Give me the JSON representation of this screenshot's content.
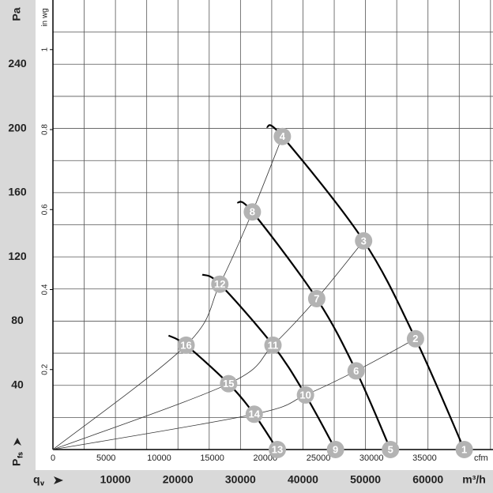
{
  "chart_data": {
    "type": "line",
    "y_label": "Pa",
    "y2_label": "in wg",
    "x2_label": "cfm",
    "x_label": "m³/h",
    "y_symbol": {
      "main": "P",
      "sub": "fs"
    },
    "x_symbol": {
      "main": "q",
      "sub": "v"
    },
    "xlim": [
      0,
      70400
    ],
    "xticks": [
      10000,
      20000,
      30000,
      40000,
      50000,
      60000
    ],
    "x2lim": [
      0,
      41440
    ],
    "x2ticks": [
      0,
      5000,
      10000,
      15000,
      20000,
      25000,
      30000,
      35000
    ],
    "ylim": [
      0,
      280
    ],
    "yticks": [
      40,
      80,
      120,
      160,
      200,
      240
    ],
    "y2lim": [
      0,
      1.124
    ],
    "y2ticks": [
      0.2,
      0.4,
      0.6,
      0.8,
      1
    ],
    "xgrid": [
      5000,
      10000,
      15000,
      20000,
      25000,
      30000,
      35000,
      40000,
      45000,
      50000,
      55000,
      60000,
      65000,
      70000
    ],
    "ygrid": [
      20,
      40,
      60,
      80,
      100,
      120,
      140,
      160,
      180,
      200,
      220,
      240,
      260
    ],
    "series": [
      {
        "style": "bold",
        "color": "#000000",
        "x": [
          34200,
          36700,
          49700,
          58000,
          65800
        ],
        "values": [
          201,
          195,
          130,
          69,
          0
        ]
      },
      {
        "style": "bold",
        "color": "#000000",
        "x": [
          29500,
          31900,
          42200,
          48500,
          54000
        ],
        "values": [
          154,
          148,
          94,
          49,
          0
        ]
      },
      {
        "style": "bold",
        "color": "#000000",
        "x": [
          23900,
          26700,
          35200,
          40400,
          45200
        ],
        "values": [
          109,
          103,
          65,
          34,
          0
        ]
      },
      {
        "style": "bold",
        "color": "#000000",
        "x": [
          18500,
          21300,
          28100,
          32200,
          35900
        ],
        "values": [
          71,
          65,
          41,
          22,
          0
        ]
      },
      {
        "style": "thin",
        "color": "#333333",
        "x": [
          0,
          21300,
          26700,
          31900,
          36700
        ],
        "values": [
          0,
          65,
          103,
          148,
          195
        ]
      },
      {
        "style": "thin",
        "color": "#333333",
        "x": [
          0,
          28100,
          35200,
          42200,
          49700
        ],
        "values": [
          0,
          41,
          65,
          94,
          130
        ]
      },
      {
        "style": "thin",
        "color": "#333333",
        "x": [
          0,
          32200,
          40400,
          48500,
          58000
        ],
        "values": [
          0,
          22,
          34,
          49,
          69
        ]
      }
    ],
    "points": {
      "color": "#b3b3b3",
      "labels": [
        "1",
        "2",
        "3",
        "4",
        "5",
        "6",
        "7",
        "8",
        "9",
        "10",
        "11",
        "12",
        "13",
        "14",
        "15",
        "16"
      ],
      "x": [
        65800,
        58000,
        49700,
        36700,
        54000,
        48500,
        42200,
        31900,
        45200,
        40400,
        35200,
        26700,
        35900,
        32200,
        28100,
        21300
      ],
      "y": [
        0,
        69,
        130,
        195,
        0,
        49,
        94,
        148,
        0,
        34,
        65,
        103,
        0,
        22,
        41,
        65
      ]
    }
  }
}
